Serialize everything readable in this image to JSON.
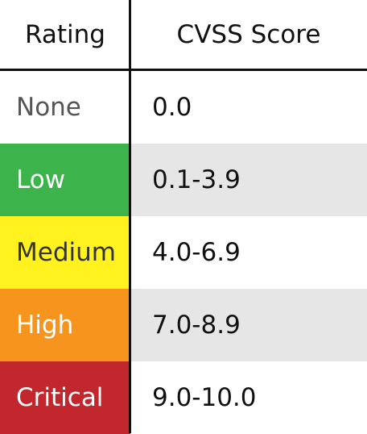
{
  "header": {
    "rating_label": "Rating",
    "score_label": "CVSS Score"
  },
  "rows": [
    {
      "rating": "None",
      "score": "0.0",
      "rating_bg": "#ffffff",
      "rating_color": "#555555",
      "score_bg": "#ffffff"
    },
    {
      "rating": "Low",
      "score": "0.1-3.9",
      "rating_bg": "#3cb44b",
      "rating_color": "#ffffff",
      "score_bg": "#e6e6e6"
    },
    {
      "rating": "Medium",
      "score": "4.0-6.9",
      "rating_bg": "#fff21f",
      "rating_color": "#333333",
      "score_bg": "#ffffff"
    },
    {
      "rating": "High",
      "score": "7.0-8.9",
      "rating_bg": "#f7941d",
      "rating_color": "#ffffff",
      "score_bg": "#e6e6e6"
    },
    {
      "rating": "Critical",
      "score": "9.0-10.0",
      "rating_bg": "#c1272d",
      "rating_color": "#ffffff",
      "score_bg": "#ffffff"
    }
  ]
}
